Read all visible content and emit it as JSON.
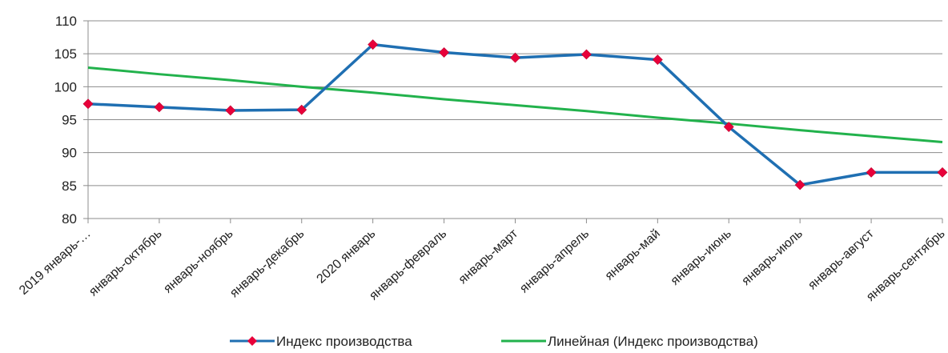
{
  "chart_data": {
    "type": "line",
    "title": "",
    "xlabel": "",
    "ylabel": "",
    "ylim": [
      80,
      110
    ],
    "yticks": [
      80,
      85,
      90,
      95,
      100,
      105,
      110
    ],
    "grid": true,
    "legend_position": "bottom",
    "categories": [
      "2019 январь-…",
      "январь-октябрь",
      "январь-ноябрь",
      "январь-декабрь",
      "2020 январь",
      "январь-февраль",
      "январь-март",
      "январь-апрель",
      "январь-май",
      "январь-июнь",
      "январь-июль",
      "январь-август",
      "январь-сентябрь"
    ],
    "series": [
      {
        "name": "Индекс производства",
        "color": "#1f6fb2",
        "marker_color": "#e8003a",
        "values": [
          97.4,
          96.9,
          96.4,
          96.5,
          106.4,
          105.2,
          104.4,
          104.9,
          104.1,
          93.9,
          85.1,
          87.0,
          87.0
        ]
      },
      {
        "name": "Линейная (Индекс производства)",
        "color": "#22b24c",
        "trendline": true,
        "values": [
          102.9,
          101.9,
          101.0,
          100.0,
          99.1,
          98.1,
          97.2,
          96.3,
          95.3,
          94.4,
          93.4,
          92.5,
          91.6
        ]
      }
    ]
  }
}
